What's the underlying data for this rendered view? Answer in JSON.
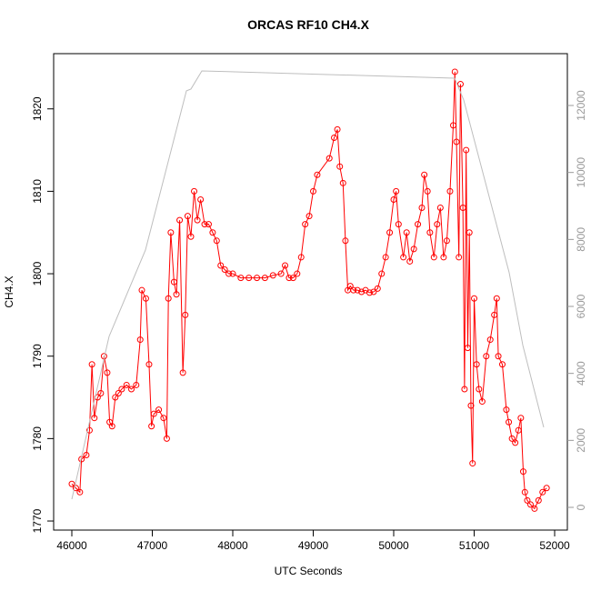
{
  "chart_data": {
    "type": "line",
    "title": "ORCAS RF10 CH4.X",
    "x_label": "UTC Seconds",
    "y_label": "CH4.X",
    "xlim": [
      45774,
      52158
    ],
    "xticks": [
      46000,
      47000,
      48000,
      49000,
      50000,
      51000,
      52000
    ],
    "ylim": [
      1768.9,
      1826.7
    ],
    "yticks": [
      1770,
      1780,
      1790,
      1800,
      1810,
      1820
    ],
    "y2lim": [
      -679,
      13548
    ],
    "y2ticks": [
      0,
      2000,
      4000,
      6000,
      8000,
      10000,
      12000
    ],
    "series": [
      {
        "color": "#ff0000",
        "marker": "circle",
        "x": [
          46000,
          46050,
          46100,
          46120,
          46180,
          46220,
          46250,
          46280,
          46320,
          46360,
          46400,
          46440,
          46470,
          46500,
          46540,
          46580,
          46620,
          46680,
          46740,
          46800,
          46850,
          46870,
          46920,
          46960,
          46990,
          47020,
          47080,
          47140,
          47180,
          47200,
          47230,
          47270,
          47300,
          47340,
          47380,
          47410,
          47440,
          47480,
          47520,
          47560,
          47600,
          47650,
          47700,
          47750,
          47800,
          47850,
          47900,
          47950,
          48000,
          48100,
          48200,
          48300,
          48400,
          48500,
          48600,
          48650,
          48700,
          48750,
          48800,
          48850,
          48900,
          48950,
          49000,
          49050,
          49200,
          49260,
          49300,
          49330,
          49370,
          49400,
          49430,
          49460,
          49500,
          49550,
          49600,
          49650,
          49700,
          49750,
          49800,
          49850,
          49900,
          49950,
          50000,
          50030,
          50060,
          50120,
          50160,
          50200,
          50250,
          50300,
          50350,
          50380,
          50420,
          50450,
          50500,
          50540,
          50580,
          50620,
          50660,
          50700,
          50740,
          50760,
          50780,
          50810,
          50830,
          50860,
          50880,
          50900,
          50920,
          50940,
          50960,
          50980,
          51000,
          51030,
          51060,
          51100,
          51150,
          51200,
          51250,
          51280,
          51300,
          51350,
          51400,
          51430,
          51470,
          51510,
          51550,
          51580,
          51610,
          51630,
          51660,
          51700,
          51750,
          51800,
          51850,
          51900
        ],
        "values": [
          1774.5,
          1774,
          1773.5,
          1777.5,
          1778,
          1781,
          1789,
          1782.5,
          1785,
          1785.5,
          1790,
          1788,
          1782,
          1781.5,
          1785,
          1785.5,
          1786,
          1786.5,
          1786,
          1786.5,
          1792,
          1798,
          1797,
          1789,
          1781.5,
          1783,
          1783.5,
          1782.5,
          1780,
          1797,
          1805,
          1799,
          1797.5,
          1806.5,
          1788,
          1795,
          1807,
          1804.5,
          1810,
          1806.5,
          1809,
          1806,
          1806,
          1805,
          1804,
          1801,
          1800.5,
          1800,
          1800,
          1799.5,
          1799.5,
          1799.5,
          1799.5,
          1799.8,
          1800,
          1801,
          1799.5,
          1799.5,
          1800,
          1802,
          1806,
          1807,
          1810,
          1812,
          1814,
          1816.5,
          1817.5,
          1813,
          1811,
          1804,
          1798,
          1798.5,
          1798,
          1798,
          1797.8,
          1798,
          1797.7,
          1797.8,
          1798.2,
          1800,
          1802,
          1805,
          1809,
          1810,
          1806,
          1802,
          1805,
          1801.5,
          1803,
          1806,
          1808,
          1812,
          1810,
          1805,
          1802,
          1806,
          1808,
          1802,
          1804,
          1810,
          1818,
          1824.5,
          1816,
          1802,
          1823,
          1808,
          1786,
          1815,
          1791,
          1805,
          1784,
          1777,
          1797,
          1789,
          1786,
          1784.5,
          1790,
          1792,
          1795,
          1797,
          1790,
          1789,
          1783.5,
          1782,
          1780,
          1779.5,
          1781,
          1782.5,
          1776,
          1773.5,
          1772.5,
          1772,
          1771.5,
          1772.5,
          1773.5,
          1774
        ]
      },
      {
        "color": "#bebebe",
        "axis": "y2",
        "x": [
          46000,
          46463,
          46915,
          47424,
          47480,
          47616,
          50757,
          50870,
          51435,
          51605,
          51864
        ],
        "values": [
          244,
          5105,
          7685,
          12437,
          12491,
          13033,
          12815,
          12164,
          7007,
          4834,
          2390
        ]
      }
    ]
  }
}
